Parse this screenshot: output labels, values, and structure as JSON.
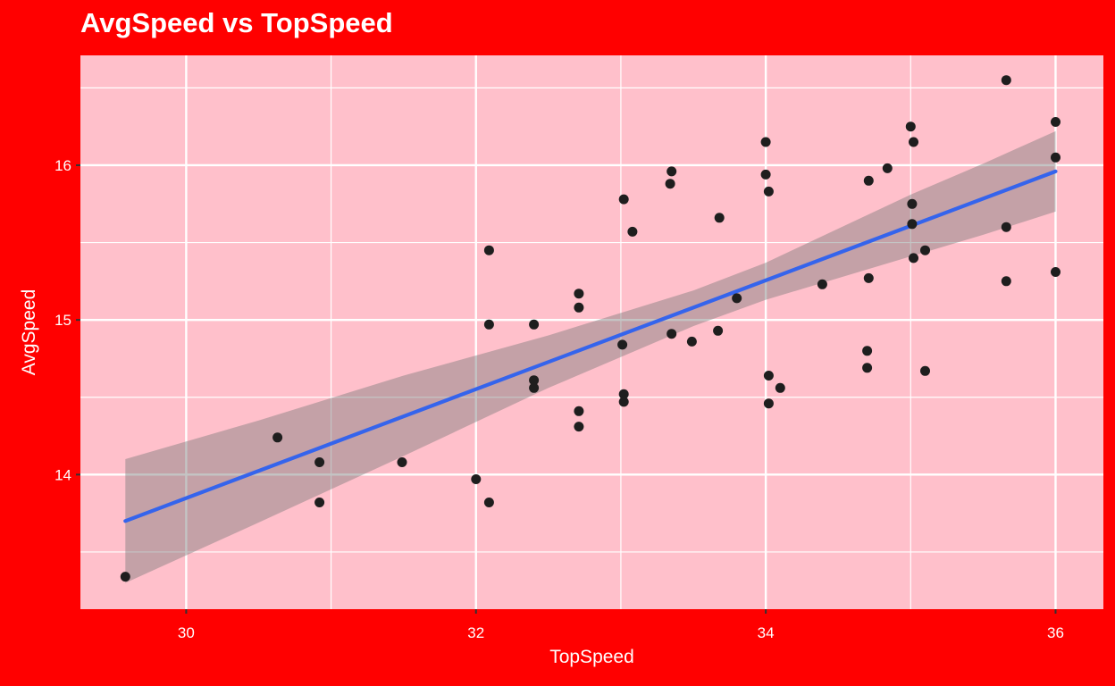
{
  "chart_data": {
    "type": "scatter",
    "title": "AvgSpeed vs TopSpeed",
    "xlabel": "TopSpeed",
    "ylabel": "AvgSpeed",
    "xlim": [
      29.27,
      36.33
    ],
    "ylim": [
      13.13,
      16.71
    ],
    "x_ticks": [
      {
        "value": 30,
        "label": "30"
      },
      {
        "value": 32,
        "label": "32"
      },
      {
        "value": 34,
        "label": "34"
      },
      {
        "value": 36,
        "label": "36"
      }
    ],
    "y_ticks": [
      {
        "value": 14,
        "label": "14"
      },
      {
        "value": 15,
        "label": "15"
      },
      {
        "value": 16,
        "label": "16"
      }
    ],
    "x_minor": [
      31,
      33,
      35
    ],
    "y_minor": [
      13.5,
      14.5,
      15.5,
      16.5
    ],
    "grid": "on",
    "legend": "none",
    "points": [
      [
        29.58,
        13.34
      ],
      [
        30.63,
        14.24
      ],
      [
        30.92,
        14.08
      ],
      [
        30.92,
        13.82
      ],
      [
        31.49,
        14.08
      ],
      [
        32.0,
        13.97
      ],
      [
        32.09,
        13.82
      ],
      [
        32.09,
        14.97
      ],
      [
        32.09,
        15.45
      ],
      [
        32.4,
        14.97
      ],
      [
        32.4,
        14.61
      ],
      [
        32.4,
        14.56
      ],
      [
        32.71,
        15.17
      ],
      [
        32.71,
        15.08
      ],
      [
        32.71,
        14.41
      ],
      [
        32.71,
        14.31
      ],
      [
        33.01,
        14.84
      ],
      [
        33.02,
        15.78
      ],
      [
        33.02,
        14.52
      ],
      [
        33.02,
        14.47
      ],
      [
        33.08,
        15.57
      ],
      [
        33.35,
        15.96
      ],
      [
        33.34,
        15.88
      ],
      [
        33.35,
        14.91
      ],
      [
        33.49,
        14.86
      ],
      [
        33.67,
        14.93
      ],
      [
        33.68,
        15.66
      ],
      [
        33.8,
        15.14
      ],
      [
        34.0,
        16.15
      ],
      [
        34.0,
        15.94
      ],
      [
        34.02,
        15.83
      ],
      [
        34.02,
        14.64
      ],
      [
        34.02,
        14.46
      ],
      [
        34.1,
        14.56
      ],
      [
        34.39,
        15.23
      ],
      [
        34.7,
        14.8
      ],
      [
        34.7,
        14.69
      ],
      [
        34.71,
        15.9
      ],
      [
        34.71,
        15.27
      ],
      [
        34.84,
        15.98
      ],
      [
        35.0,
        16.25
      ],
      [
        35.02,
        16.15
      ],
      [
        35.01,
        15.75
      ],
      [
        35.01,
        15.62
      ],
      [
        35.02,
        15.4
      ],
      [
        35.1,
        15.45
      ],
      [
        35.1,
        14.67
      ],
      [
        35.66,
        16.55
      ],
      [
        35.66,
        15.6
      ],
      [
        35.66,
        15.25
      ],
      [
        36.0,
        16.28
      ],
      [
        36.0,
        16.05
      ],
      [
        36.0,
        15.31
      ]
    ],
    "trend_line": {
      "type": "linear",
      "x": [
        29.58,
        36.0
      ],
      "y": [
        13.7,
        15.96
      ]
    },
    "confidence_band": {
      "x": [
        29.58,
        30.5,
        31.5,
        32.5,
        33.5,
        34.0,
        34.5,
        35.0,
        35.5,
        36.0
      ],
      "top": [
        14.1,
        14.35,
        14.64,
        14.9,
        15.19,
        15.37,
        15.59,
        15.81,
        16.01,
        16.22
      ],
      "bottom": [
        13.3,
        13.69,
        14.12,
        14.56,
        14.96,
        15.13,
        15.27,
        15.41,
        15.55,
        15.7
      ]
    },
    "colors": {
      "plot_background": "#FF0000",
      "panel_background": "#FFC0CB",
      "grid": "#FFFFFF",
      "text": "#FFFFFF",
      "point": "#1E1E1E",
      "trend_line": "#3564EC",
      "band": "#787878",
      "band_opacity": 0.44,
      "tick_mark": "#333333"
    }
  }
}
